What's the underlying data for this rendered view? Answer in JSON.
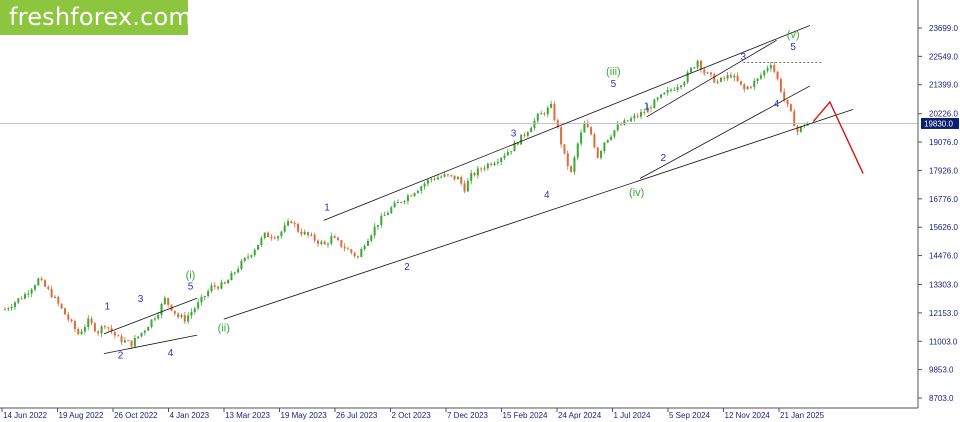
{
  "brand": {
    "logo_text": "freshforex.com",
    "logo_bg": "#8cc63f"
  },
  "colors": {
    "bull": "#3aa835",
    "bear": "#e06a3c",
    "blue_label": "#2233cc",
    "green_label": "#3aa835",
    "forecast": "#dd1111",
    "trendline": "#111111",
    "price_box": "#0b1f6e"
  },
  "chart_data": {
    "type": "candlestick",
    "current_price": "19830.0",
    "y_ticks": [
      "23699.0",
      "22549.0",
      "21399.0",
      "20226.0",
      "19076.0",
      "17926.0",
      "16776.0",
      "15626.0",
      "14476.0",
      "13303.0",
      "12153.0",
      "11003.0",
      "9853.0",
      "8703.0"
    ],
    "x_ticks": [
      "14 Jun 2022",
      "19 Aug 2022",
      "26 Oct 2022",
      "4 Jan 2023",
      "13 Mar 2023",
      "19 May 2023",
      "26 Jul 2023",
      "2 Oct 2023",
      "7 Dec 2023",
      "15 Feb 2024",
      "24 Apr 2024",
      "1 Jul 2024",
      "5 Sep 2024",
      "12 Nov 2024",
      "21 Jan 2025"
    ],
    "price_path": [
      [
        0,
        12300
      ],
      [
        6,
        12900
      ],
      [
        10,
        13500
      ],
      [
        14,
        12900
      ],
      [
        18,
        12100
      ],
      [
        22,
        11300
      ],
      [
        25,
        11800
      ],
      [
        28,
        11400
      ],
      [
        30,
        11700
      ],
      [
        34,
        11100
      ],
      [
        38,
        10900
      ],
      [
        42,
        11500
      ],
      [
        46,
        12200
      ],
      [
        48,
        12700
      ],
      [
        52,
        12000
      ],
      [
        54,
        11900
      ],
      [
        58,
        12500
      ],
      [
        62,
        13200
      ],
      [
        66,
        13300
      ],
      [
        70,
        14000
      ],
      [
        74,
        14600
      ],
      [
        78,
        15300
      ],
      [
        82,
        15300
      ],
      [
        86,
        15900
      ],
      [
        88,
        15500
      ],
      [
        92,
        15200
      ],
      [
        96,
        14900
      ],
      [
        98,
        15200
      ],
      [
        102,
        14800
      ],
      [
        106,
        14400
      ],
      [
        108,
        15000
      ],
      [
        112,
        15800
      ],
      [
        116,
        16400
      ],
      [
        120,
        16800
      ],
      [
        124,
        17200
      ],
      [
        128,
        17600
      ],
      [
        132,
        17700
      ],
      [
        136,
        17600
      ],
      [
        138,
        17200
      ],
      [
        140,
        17700
      ],
      [
        144,
        18100
      ],
      [
        148,
        18400
      ],
      [
        152,
        18800
      ],
      [
        156,
        19400
      ],
      [
        160,
        20100
      ],
      [
        164,
        20500
      ],
      [
        166,
        19600
      ],
      [
        168,
        18500
      ],
      [
        170,
        17800
      ],
      [
        172,
        19000
      ],
      [
        174,
        19800
      ],
      [
        176,
        19400
      ],
      [
        178,
        18500
      ],
      [
        180,
        19100
      ],
      [
        184,
        19700
      ],
      [
        188,
        20000
      ],
      [
        192,
        20300
      ],
      [
        196,
        20800
      ],
      [
        200,
        21200
      ],
      [
        204,
        21600
      ],
      [
        208,
        22400
      ],
      [
        210,
        21900
      ],
      [
        214,
        21500
      ],
      [
        218,
        21800
      ],
      [
        222,
        21200
      ],
      [
        226,
        21600
      ],
      [
        230,
        22300
      ],
      [
        232,
        21600
      ],
      [
        234,
        20800
      ],
      [
        236,
        20200
      ],
      [
        238,
        19500
      ],
      [
        240,
        19800
      ],
      [
        242,
        19900
      ]
    ],
    "forecast": [
      [
        243,
        19900
      ],
      [
        248,
        20700
      ],
      [
        258,
        17800
      ]
    ],
    "wave_labels_blue": [
      {
        "text": "1",
        "x": 31,
        "y": 12300
      },
      {
        "text": "2",
        "x": 35,
        "y": 10300
      },
      {
        "text": "3",
        "x": 41,
        "y": 12600
      },
      {
        "text": "4",
        "x": 50,
        "y": 10400
      },
      {
        "text": "5",
        "x": 56,
        "y": 13100
      },
      {
        "text": "1",
        "x": 97,
        "y": 16300
      },
      {
        "text": "2",
        "x": 121,
        "y": 13900
      },
      {
        "text": "3",
        "x": 153,
        "y": 19300
      },
      {
        "text": "4",
        "x": 163,
        "y": 16800
      },
      {
        "text": "5",
        "x": 183,
        "y": 21300
      },
      {
        "text": "1",
        "x": 193,
        "y": 20400
      },
      {
        "text": "2",
        "x": 198,
        "y": 18300
      },
      {
        "text": "3",
        "x": 222,
        "y": 22400
      },
      {
        "text": "4",
        "x": 232,
        "y": 20500
      },
      {
        "text": "5",
        "x": 237,
        "y": 22800
      }
    ],
    "wave_labels_green": [
      {
        "text": "(i)",
        "x": 56,
        "y": 13550
      },
      {
        "text": "(ii)",
        "x": 66,
        "y": 11400
      },
      {
        "text": "(iii)",
        "x": 183,
        "y": 21800
      },
      {
        "text": "(iv)",
        "x": 190,
        "y": 16900
      },
      {
        "text": "(v)",
        "x": 237,
        "y": 23300
      }
    ],
    "trendlines": [
      [
        [
          30,
          10500
        ],
        [
          58,
          11250
        ]
      ],
      [
        [
          30,
          11300
        ],
        [
          58,
          12750
        ]
      ],
      [
        [
          66,
          11900
        ],
        [
          255,
          20400
        ]
      ],
      [
        [
          96,
          15900
        ],
        [
          242,
          23800
        ]
      ],
      [
        [
          191,
          17600
        ],
        [
          242,
          21350
        ]
      ],
      [
        [
          193,
          20100
        ],
        [
          232,
          23200
        ]
      ]
    ],
    "dotted_level": {
      "from_x": 222,
      "to_x": 246,
      "value": 22300
    },
    "horizontal_line": 19830,
    "x_scale": {
      "first_label": "14 Jun 2022",
      "step_days_per_unit": 4.4
    },
    "grid": false
  }
}
